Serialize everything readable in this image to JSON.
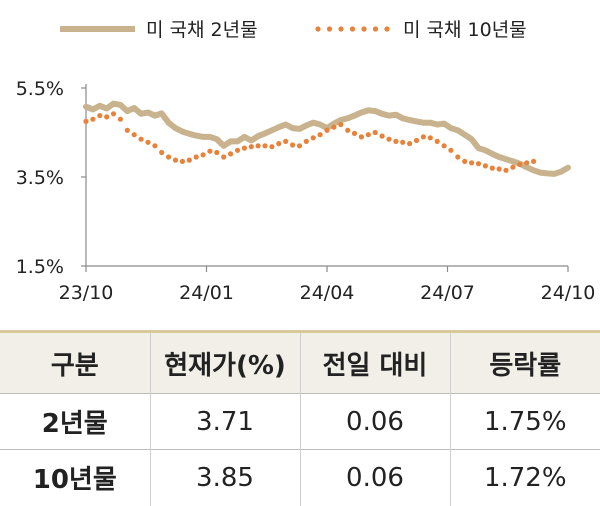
{
  "chart_data": {
    "type": "line",
    "legend_position": "top",
    "y_ticks": [
      "5.5%",
      "3.5%",
      "1.5%"
    ],
    "ylim": [
      1.5,
      5.5
    ],
    "x_ticks": [
      "23/10",
      "24/01",
      "24/04",
      "24/07",
      "24/10"
    ],
    "series": [
      {
        "name": "미 국채 2년물",
        "color": "#c8b38e",
        "style": "solid",
        "points": [
          [
            0,
            5.08
          ],
          [
            1,
            5.02
          ],
          [
            2,
            5.1
          ],
          [
            3,
            5.04
          ],
          [
            4,
            5.15
          ],
          [
            5,
            5.12
          ],
          [
            6,
            4.98
          ],
          [
            7,
            5.05
          ],
          [
            8,
            4.92
          ],
          [
            9,
            4.95
          ],
          [
            10,
            4.88
          ],
          [
            11,
            4.93
          ],
          [
            12,
            4.72
          ],
          [
            13,
            4.6
          ],
          [
            14,
            4.52
          ],
          [
            15,
            4.47
          ],
          [
            16,
            4.43
          ],
          [
            17,
            4.4
          ],
          [
            18,
            4.4
          ],
          [
            19,
            4.35
          ],
          [
            20,
            4.2
          ],
          [
            21,
            4.3
          ],
          [
            22,
            4.3
          ],
          [
            23,
            4.4
          ],
          [
            24,
            4.32
          ],
          [
            25,
            4.42
          ],
          [
            26,
            4.48
          ],
          [
            27,
            4.55
          ],
          [
            28,
            4.62
          ],
          [
            29,
            4.68
          ],
          [
            30,
            4.6
          ],
          [
            31,
            4.58
          ],
          [
            32,
            4.66
          ],
          [
            33,
            4.72
          ],
          [
            34,
            4.68
          ],
          [
            35,
            4.6
          ],
          [
            36,
            4.7
          ],
          [
            37,
            4.78
          ],
          [
            38,
            4.82
          ],
          [
            39,
            4.88
          ],
          [
            40,
            4.95
          ],
          [
            41,
            5.0
          ],
          [
            42,
            4.98
          ],
          [
            43,
            4.92
          ],
          [
            44,
            4.88
          ],
          [
            45,
            4.9
          ],
          [
            46,
            4.82
          ],
          [
            47,
            4.78
          ],
          [
            48,
            4.75
          ],
          [
            49,
            4.72
          ],
          [
            50,
            4.72
          ],
          [
            51,
            4.68
          ],
          [
            52,
            4.7
          ],
          [
            53,
            4.6
          ],
          [
            54,
            4.55
          ],
          [
            55,
            4.45
          ],
          [
            56,
            4.35
          ],
          [
            57,
            4.15
          ],
          [
            58,
            4.1
          ],
          [
            59,
            4.02
          ],
          [
            60,
            3.95
          ],
          [
            61,
            3.9
          ],
          [
            62,
            3.85
          ],
          [
            63,
            3.8
          ],
          [
            64,
            3.72
          ],
          [
            65,
            3.65
          ],
          [
            66,
            3.6
          ],
          [
            67,
            3.58
          ],
          [
            68,
            3.57
          ],
          [
            69,
            3.62
          ],
          [
            70,
            3.71
          ]
        ]
      },
      {
        "name": "미 국채 10년물",
        "color": "#e8823a",
        "style": "dotted",
        "points": [
          [
            0,
            4.75
          ],
          [
            1,
            4.8
          ],
          [
            2,
            4.88
          ],
          [
            3,
            4.85
          ],
          [
            4,
            4.92
          ],
          [
            5,
            4.8
          ],
          [
            6,
            4.55
          ],
          [
            7,
            4.45
          ],
          [
            8,
            4.35
          ],
          [
            9,
            4.28
          ],
          [
            10,
            4.2
          ],
          [
            11,
            4.05
          ],
          [
            12,
            3.95
          ],
          [
            13,
            3.88
          ],
          [
            14,
            3.85
          ],
          [
            15,
            3.88
          ],
          [
            16,
            3.95
          ],
          [
            17,
            4.0
          ],
          [
            18,
            4.08
          ],
          [
            19,
            4.05
          ],
          [
            20,
            3.95
          ],
          [
            21,
            4.02
          ],
          [
            22,
            4.1
          ],
          [
            23,
            4.15
          ],
          [
            24,
            4.18
          ],
          [
            25,
            4.2
          ],
          [
            26,
            4.2
          ],
          [
            27,
            4.18
          ],
          [
            28,
            4.25
          ],
          [
            29,
            4.3
          ],
          [
            30,
            4.22
          ],
          [
            31,
            4.2
          ],
          [
            32,
            4.3
          ],
          [
            33,
            4.38
          ],
          [
            34,
            4.45
          ],
          [
            35,
            4.55
          ],
          [
            36,
            4.62
          ],
          [
            37,
            4.68
          ],
          [
            38,
            4.55
          ],
          [
            39,
            4.48
          ],
          [
            40,
            4.4
          ],
          [
            41,
            4.45
          ],
          [
            42,
            4.5
          ],
          [
            43,
            4.42
          ],
          [
            44,
            4.35
          ],
          [
            45,
            4.3
          ],
          [
            46,
            4.28
          ],
          [
            47,
            4.25
          ],
          [
            48,
            4.32
          ],
          [
            49,
            4.4
          ],
          [
            50,
            4.38
          ],
          [
            51,
            4.3
          ],
          [
            52,
            4.2
          ],
          [
            53,
            4.1
          ],
          [
            54,
            3.95
          ],
          [
            55,
            3.85
          ],
          [
            56,
            3.82
          ],
          [
            57,
            3.8
          ],
          [
            58,
            3.75
          ],
          [
            59,
            3.7
          ],
          [
            60,
            3.68
          ],
          [
            61,
            3.65
          ],
          [
            62,
            3.72
          ],
          [
            63,
            3.78
          ],
          [
            64,
            3.82
          ],
          [
            65,
            3.85
          ]
        ]
      }
    ],
    "x_max": 70
  },
  "table": {
    "headers": [
      "구분",
      "현재가(%)",
      "전일 대비",
      "등락률"
    ],
    "rows": [
      [
        "2년물",
        "3.71",
        "0.06",
        "1.75%"
      ],
      [
        "10년물",
        "3.85",
        "0.06",
        "1.72%"
      ]
    ]
  }
}
